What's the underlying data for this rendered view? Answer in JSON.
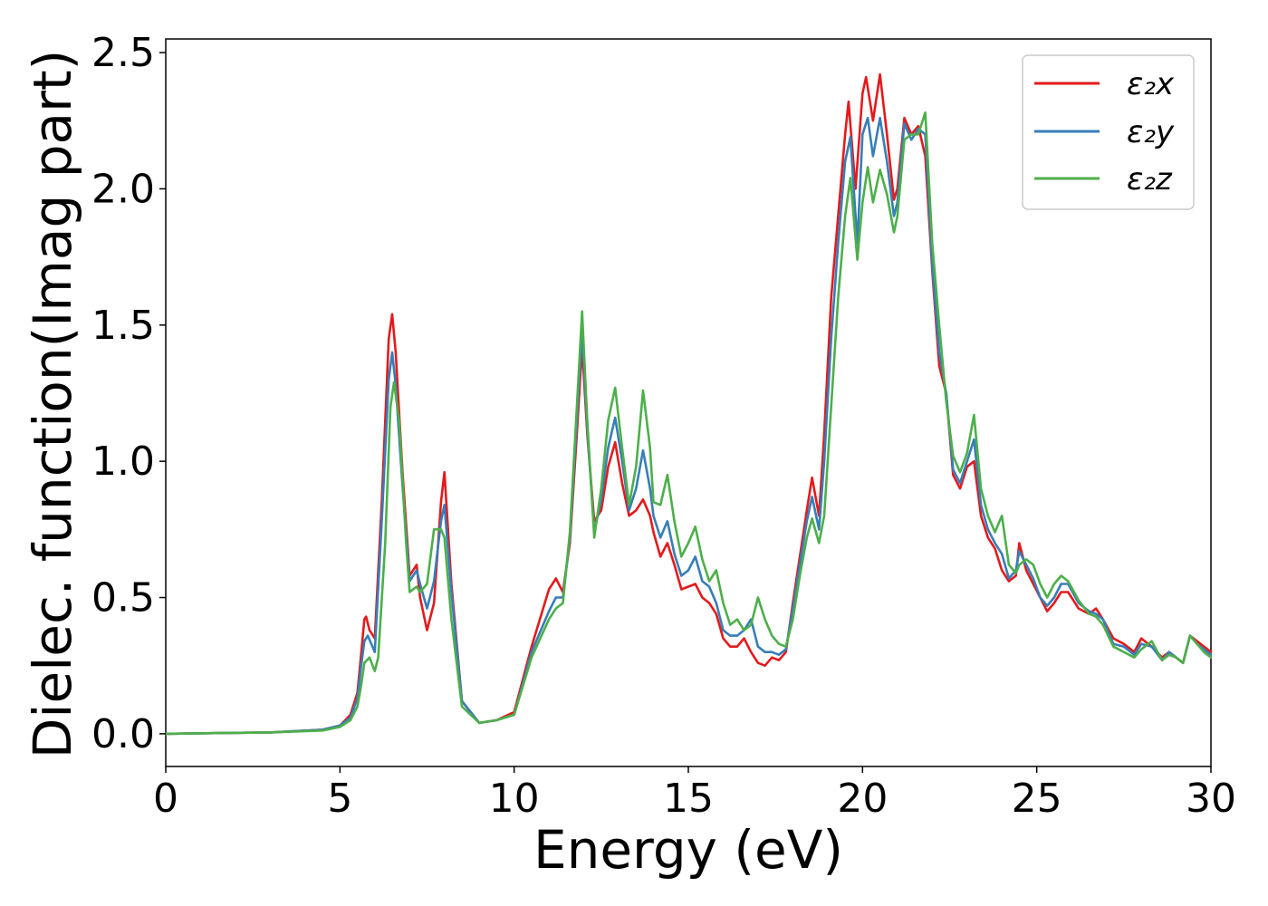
{
  "chart_data": {
    "type": "line",
    "title": "",
    "xlabel": "Energy (eV)",
    "ylabel": "Dielec. function(Imag part)",
    "xlim": [
      0,
      30
    ],
    "ylim": [
      -0.12,
      2.55
    ],
    "xticks": [
      0,
      5,
      10,
      15,
      20,
      25,
      30
    ],
    "yticks": [
      0.0,
      0.5,
      1.0,
      1.5,
      2.0,
      2.5
    ],
    "xtick_labels": [
      "0",
      "5",
      "10",
      "15",
      "20",
      "25",
      "30"
    ],
    "ytick_labels": [
      "0.0",
      "0.5",
      "1.0",
      "1.5",
      "2.0",
      "2.5"
    ],
    "grid": false,
    "legend_position": "top-right",
    "series": [
      {
        "name": "ε₂x",
        "color": "#e41a1c",
        "x": [
          0,
          3,
          4.5,
          5.0,
          5.3,
          5.5,
          5.6,
          5.7,
          5.75,
          5.85,
          6.0,
          6.2,
          6.4,
          6.5,
          6.6,
          6.8,
          7.0,
          7.2,
          7.3,
          7.5,
          7.7,
          7.9,
          8.0,
          8.2,
          8.5,
          9.0,
          9.5,
          10.0,
          10.5,
          11.0,
          11.2,
          11.4,
          11.6,
          11.8,
          11.95,
          12.1,
          12.3,
          12.5,
          12.7,
          12.9,
          13.1,
          13.3,
          13.5,
          13.7,
          13.9,
          14.0,
          14.2,
          14.4,
          14.6,
          14.8,
          15.0,
          15.2,
          15.4,
          15.6,
          15.8,
          16.0,
          16.2,
          16.4,
          16.6,
          16.8,
          17.0,
          17.2,
          17.4,
          17.6,
          17.8,
          18.0,
          18.2,
          18.4,
          18.55,
          18.75,
          18.9,
          19.1,
          19.3,
          19.5,
          19.6,
          19.8,
          20.0,
          20.1,
          20.3,
          20.5,
          20.7,
          20.9,
          21.0,
          21.2,
          21.4,
          21.6,
          21.8,
          22.0,
          22.2,
          22.4,
          22.6,
          22.8,
          23.0,
          23.2,
          23.4,
          23.6,
          23.8,
          24.0,
          24.2,
          24.4,
          24.5,
          24.7,
          24.9,
          25.1,
          25.3,
          25.5,
          25.7,
          25.9,
          26.2,
          26.5,
          26.7,
          26.9,
          27.2,
          27.5,
          27.8,
          28.0,
          28.3,
          28.6,
          28.8,
          29.0,
          29.2,
          29.4,
          29.6,
          29.8,
          30.0
        ],
        "y": [
          0.0,
          0.005,
          0.015,
          0.03,
          0.07,
          0.15,
          0.28,
          0.42,
          0.43,
          0.38,
          0.35,
          0.85,
          1.45,
          1.54,
          1.4,
          0.95,
          0.58,
          0.62,
          0.5,
          0.38,
          0.48,
          0.85,
          0.96,
          0.55,
          0.12,
          0.04,
          0.05,
          0.08,
          0.32,
          0.53,
          0.57,
          0.52,
          0.7,
          1.1,
          1.42,
          1.1,
          0.78,
          0.82,
          0.98,
          1.07,
          0.92,
          0.8,
          0.82,
          0.86,
          0.8,
          0.74,
          0.65,
          0.7,
          0.62,
          0.53,
          0.54,
          0.55,
          0.5,
          0.48,
          0.44,
          0.35,
          0.32,
          0.32,
          0.35,
          0.3,
          0.26,
          0.25,
          0.28,
          0.27,
          0.3,
          0.48,
          0.65,
          0.82,
          0.94,
          0.8,
          1.1,
          1.6,
          1.9,
          2.2,
          2.32,
          2.0,
          2.35,
          2.41,
          2.25,
          2.42,
          2.2,
          1.96,
          2.0,
          2.26,
          2.2,
          2.23,
          2.12,
          1.7,
          1.35,
          1.25,
          0.95,
          0.9,
          0.98,
          1.0,
          0.8,
          0.72,
          0.68,
          0.6,
          0.56,
          0.58,
          0.7,
          0.6,
          0.55,
          0.5,
          0.45,
          0.48,
          0.52,
          0.52,
          0.46,
          0.44,
          0.46,
          0.42,
          0.35,
          0.33,
          0.3,
          0.35,
          0.32,
          0.28,
          0.3,
          0.28,
          0.26,
          0.36,
          0.34,
          0.32,
          0.3
        ]
      },
      {
        "name": "ε₂y",
        "color": "#377eb8",
        "x": [
          0,
          3,
          4.5,
          5.0,
          5.3,
          5.5,
          5.6,
          5.7,
          5.8,
          5.9,
          6.0,
          6.2,
          6.4,
          6.5,
          6.6,
          6.8,
          7.0,
          7.2,
          7.3,
          7.5,
          7.7,
          7.9,
          8.0,
          8.2,
          8.5,
          9.0,
          9.5,
          10.0,
          10.5,
          11.0,
          11.2,
          11.4,
          11.6,
          11.8,
          11.95,
          12.1,
          12.3,
          12.5,
          12.7,
          12.9,
          13.1,
          13.3,
          13.5,
          13.7,
          13.9,
          14.0,
          14.2,
          14.4,
          14.6,
          14.8,
          15.0,
          15.2,
          15.4,
          15.6,
          15.8,
          16.0,
          16.2,
          16.4,
          16.6,
          16.8,
          17.0,
          17.2,
          17.4,
          17.6,
          17.8,
          18.0,
          18.2,
          18.4,
          18.55,
          18.75,
          18.9,
          19.1,
          19.3,
          19.5,
          19.65,
          19.85,
          20.0,
          20.15,
          20.3,
          20.5,
          20.7,
          20.9,
          21.0,
          21.2,
          21.4,
          21.6,
          21.8,
          22.0,
          22.2,
          22.4,
          22.6,
          22.8,
          23.0,
          23.2,
          23.4,
          23.6,
          23.8,
          24.0,
          24.2,
          24.4,
          24.5,
          24.7,
          24.9,
          25.1,
          25.3,
          25.5,
          25.7,
          25.9,
          26.2,
          26.5,
          26.7,
          26.9,
          27.2,
          27.5,
          27.8,
          28.0,
          28.3,
          28.6,
          28.8,
          29.0,
          29.2,
          29.4,
          29.6,
          29.8,
          30.0
        ],
        "y": [
          0.0,
          0.005,
          0.015,
          0.03,
          0.06,
          0.13,
          0.24,
          0.34,
          0.36,
          0.33,
          0.3,
          0.78,
          1.3,
          1.4,
          1.28,
          0.9,
          0.56,
          0.6,
          0.55,
          0.46,
          0.56,
          0.78,
          0.84,
          0.52,
          0.12,
          0.04,
          0.05,
          0.07,
          0.3,
          0.45,
          0.5,
          0.5,
          0.72,
          1.15,
          1.48,
          1.12,
          0.74,
          0.86,
          1.05,
          1.16,
          1.0,
          0.82,
          0.9,
          1.04,
          0.9,
          0.8,
          0.72,
          0.78,
          0.66,
          0.58,
          0.6,
          0.65,
          0.56,
          0.54,
          0.48,
          0.38,
          0.36,
          0.36,
          0.38,
          0.42,
          0.32,
          0.3,
          0.3,
          0.29,
          0.31,
          0.46,
          0.62,
          0.78,
          0.87,
          0.75,
          1.0,
          1.45,
          1.8,
          2.1,
          2.19,
          1.8,
          2.2,
          2.26,
          2.12,
          2.26,
          2.1,
          1.9,
          1.95,
          2.24,
          2.18,
          2.22,
          2.2,
          1.72,
          1.4,
          1.25,
          0.97,
          0.92,
          1.0,
          1.08,
          0.84,
          0.75,
          0.7,
          0.66,
          0.57,
          0.6,
          0.67,
          0.62,
          0.57,
          0.5,
          0.47,
          0.5,
          0.55,
          0.55,
          0.48,
          0.45,
          0.44,
          0.42,
          0.33,
          0.32,
          0.29,
          0.33,
          0.32,
          0.27,
          0.3,
          0.28,
          0.26,
          0.36,
          0.33,
          0.31,
          0.29
        ]
      },
      {
        "name": "ε₂z",
        "color": "#4daf4a",
        "x": [
          0,
          3,
          4.5,
          5.0,
          5.3,
          5.5,
          5.6,
          5.7,
          5.85,
          6.0,
          6.1,
          6.3,
          6.45,
          6.55,
          6.7,
          6.9,
          7.0,
          7.2,
          7.3,
          7.5,
          7.7,
          7.9,
          8.0,
          8.2,
          8.5,
          9.0,
          9.5,
          10.0,
          10.5,
          11.0,
          11.2,
          11.4,
          11.6,
          11.8,
          11.95,
          12.1,
          12.3,
          12.5,
          12.7,
          12.9,
          13.1,
          13.3,
          13.5,
          13.7,
          13.9,
          14.0,
          14.2,
          14.4,
          14.6,
          14.8,
          15.0,
          15.2,
          15.4,
          15.6,
          15.8,
          16.0,
          16.2,
          16.4,
          16.6,
          16.8,
          17.0,
          17.2,
          17.4,
          17.6,
          17.8,
          18.0,
          18.2,
          18.4,
          18.55,
          18.75,
          18.9,
          19.1,
          19.3,
          19.5,
          19.65,
          19.85,
          20.0,
          20.15,
          20.3,
          20.5,
          20.7,
          20.9,
          21.0,
          21.2,
          21.4,
          21.6,
          21.8,
          22.0,
          22.2,
          22.4,
          22.6,
          22.8,
          23.0,
          23.2,
          23.4,
          23.6,
          23.8,
          24.0,
          24.2,
          24.4,
          24.5,
          24.7,
          24.9,
          25.1,
          25.3,
          25.5,
          25.7,
          25.9,
          26.2,
          26.5,
          26.7,
          26.9,
          27.2,
          27.5,
          27.8,
          28.0,
          28.3,
          28.6,
          28.8,
          29.0,
          29.2,
          29.4,
          29.6,
          29.8,
          30.0
        ],
        "y": [
          0.0,
          0.005,
          0.012,
          0.025,
          0.05,
          0.1,
          0.17,
          0.26,
          0.28,
          0.23,
          0.28,
          0.7,
          1.2,
          1.29,
          1.15,
          0.7,
          0.52,
          0.54,
          0.52,
          0.55,
          0.75,
          0.75,
          0.72,
          0.42,
          0.1,
          0.04,
          0.05,
          0.07,
          0.28,
          0.42,
          0.46,
          0.48,
          0.74,
          1.2,
          1.55,
          1.15,
          0.72,
          0.9,
          1.15,
          1.27,
          1.05,
          0.84,
          0.98,
          1.26,
          1.05,
          0.85,
          0.84,
          0.95,
          0.78,
          0.65,
          0.7,
          0.76,
          0.64,
          0.56,
          0.6,
          0.48,
          0.4,
          0.42,
          0.38,
          0.4,
          0.5,
          0.42,
          0.36,
          0.33,
          0.32,
          0.42,
          0.58,
          0.72,
          0.79,
          0.7,
          0.8,
          1.2,
          1.6,
          1.9,
          2.04,
          1.74,
          1.95,
          2.08,
          1.95,
          2.07,
          1.98,
          1.84,
          1.9,
          2.18,
          2.2,
          2.2,
          2.28,
          1.8,
          1.5,
          1.22,
          1.02,
          0.96,
          1.03,
          1.17,
          0.9,
          0.8,
          0.74,
          0.8,
          0.62,
          0.59,
          0.62,
          0.64,
          0.62,
          0.55,
          0.5,
          0.55,
          0.58,
          0.56,
          0.49,
          0.44,
          0.43,
          0.4,
          0.32,
          0.3,
          0.28,
          0.31,
          0.34,
          0.27,
          0.29,
          0.28,
          0.26,
          0.36,
          0.33,
          0.3,
          0.28
        ]
      }
    ]
  }
}
